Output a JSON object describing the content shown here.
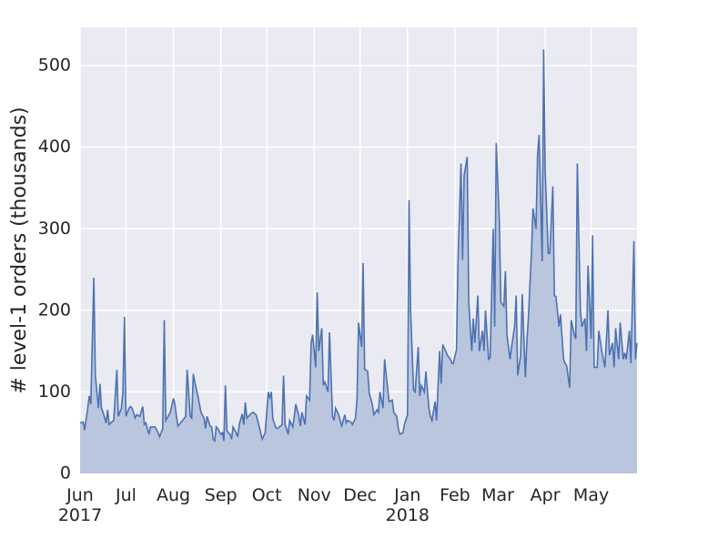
{
  "chart_data": {
    "type": "area",
    "ylabel": "# level-1 orders (thousands)",
    "x": [
      0,
      2,
      3,
      5,
      6,
      7,
      9,
      10,
      12,
      13,
      14,
      15,
      17,
      18,
      19,
      20,
      22,
      24,
      25,
      27,
      28,
      29,
      30,
      32,
      33,
      34,
      36,
      37,
      39,
      41,
      42,
      43,
      45,
      46,
      49,
      51,
      52,
      54,
      55,
      56,
      59,
      61,
      62,
      63,
      64,
      67,
      69,
      70,
      72,
      73,
      74,
      75,
      77,
      79,
      81,
      82,
      83,
      85,
      86,
      87,
      88,
      89,
      90,
      92,
      93,
      94,
      95,
      96,
      98,
      99,
      100,
      102,
      103,
      104,
      106,
      107,
      108,
      109,
      111,
      113,
      115,
      117,
      119,
      121,
      123,
      124,
      125,
      126,
      128,
      129,
      132,
      133,
      134,
      136,
      137,
      139,
      140,
      141,
      143,
      144,
      145,
      147,
      148,
      150,
      151,
      152,
      154,
      155,
      156,
      158,
      159,
      160,
      162,
      163,
      165,
      166,
      167,
      169,
      170,
      171,
      173,
      174,
      175,
      177,
      178,
      180,
      181,
      182,
      184,
      185,
      186,
      188,
      189,
      191,
      192,
      194,
      195,
      196,
      198,
      199,
      201,
      202,
      204,
      205,
      207,
      208,
      209,
      211,
      212,
      214,
      215,
      216,
      218,
      219,
      221,
      222,
      223,
      225,
      226,
      228,
      229,
      230,
      232,
      233,
      235,
      236,
      237,
      239,
      240,
      242,
      243,
      244,
      246,
      247,
      249,
      250,
      251,
      253,
      254,
      256,
      257,
      258,
      260,
      261,
      263,
      264,
      265,
      267,
      268,
      270,
      271,
      272,
      274,
      275,
      277,
      278,
      279,
      281,
      282,
      284,
      285,
      286,
      288,
      289,
      291,
      292,
      293,
      295,
      296,
      298,
      299,
      300,
      302,
      303,
      304,
      306,
      307,
      309,
      310,
      311,
      313,
      314,
      316,
      317,
      318,
      320,
      321,
      323,
      324,
      325,
      327,
      328,
      330,
      331,
      332,
      334,
      335,
      336,
      338,
      339,
      341,
      342,
      343,
      345,
      346,
      348,
      349,
      350,
      352,
      353,
      355,
      356,
      357,
      359,
      360,
      362,
      363,
      364
    ],
    "series": [
      {
        "color": "#4c72b0",
        "fill": "#b9c6de",
        "values": [
          62,
          63,
          53,
          80,
          95,
          85,
          240,
          120,
          80,
          110,
          80,
          75,
          62,
          78,
          60,
          62,
          65,
          127,
          70,
          80,
          100,
          192,
          70,
          80,
          82,
          80,
          68,
          72,
          70,
          82,
          60,
          62,
          48,
          57,
          57,
          50,
          45,
          55,
          188,
          65,
          75,
          92,
          85,
          70,
          58,
          65,
          70,
          127,
          70,
          68,
          122,
          112,
          95,
          75,
          68,
          55,
          70,
          58,
          57,
          42,
          40,
          57,
          55,
          48,
          50,
          40,
          108,
          52,
          48,
          42,
          57,
          50,
          45,
          60,
          73,
          60,
          87,
          68,
          72,
          75,
          72,
          58,
          42,
          50,
          100,
          93,
          100,
          67,
          56,
          55,
          60,
          120,
          60,
          48,
          65,
          57,
          70,
          85,
          70,
          58,
          75,
          60,
          95,
          90,
          160,
          170,
          130,
          222,
          150,
          178,
          108,
          112,
          100,
          173,
          70,
          65,
          80,
          72,
          65,
          58,
          72,
          62,
          65,
          63,
          60,
          68,
          90,
          185,
          155,
          258,
          128,
          125,
          98,
          85,
          72,
          78,
          75,
          100,
          80,
          140,
          105,
          88,
          90,
          75,
          70,
          55,
          48,
          50,
          60,
          72,
          335,
          200,
          102,
          100,
          155,
          95,
          108,
          100,
          125,
          80,
          70,
          65,
          88,
          65,
          150,
          110,
          158,
          150,
          145,
          140,
          135,
          135,
          152,
          260,
          380,
          262,
          365,
          388,
          210,
          150,
          190,
          160,
          218,
          150,
          175,
          150,
          200,
          140,
          142,
          300,
          180,
          405,
          310,
          210,
          205,
          248,
          170,
          140,
          155,
          180,
          218,
          120,
          145,
          220,
          118,
          160,
          190,
          270,
          325,
          300,
          390,
          415,
          260,
          520,
          370,
          270,
          270,
          352,
          218,
          217,
          180,
          195,
          140,
          135,
          132,
          105,
          188,
          170,
          165,
          380,
          200,
          180,
          190,
          150,
          255,
          165,
          292,
          130,
          130,
          175,
          150,
          140,
          130,
          200,
          145,
          160,
          130,
          178,
          140,
          185,
          140,
          148,
          140,
          175,
          135,
          285,
          140,
          160
        ]
      }
    ],
    "xlim": [
      0,
      364
    ],
    "xticks": [
      {
        "value": 0,
        "label": "Jun\n2017"
      },
      {
        "value": 30,
        "label": "Jul"
      },
      {
        "value": 61,
        "label": "Aug"
      },
      {
        "value": 92,
        "label": "Sep"
      },
      {
        "value": 122,
        "label": "Oct"
      },
      {
        "value": 153,
        "label": "Nov"
      },
      {
        "value": 183,
        "label": "Dec"
      },
      {
        "value": 214,
        "label": "Jan\n2018"
      },
      {
        "value": 245,
        "label": "Feb"
      },
      {
        "value": 273,
        "label": "Mar"
      },
      {
        "value": 304,
        "label": "Apr"
      },
      {
        "value": 334,
        "label": "May"
      }
    ],
    "ylim": [
      0,
      547
    ],
    "yticks": [
      0,
      100,
      200,
      300,
      400,
      500
    ],
    "grid": true,
    "background": "#eaeaf2"
  }
}
